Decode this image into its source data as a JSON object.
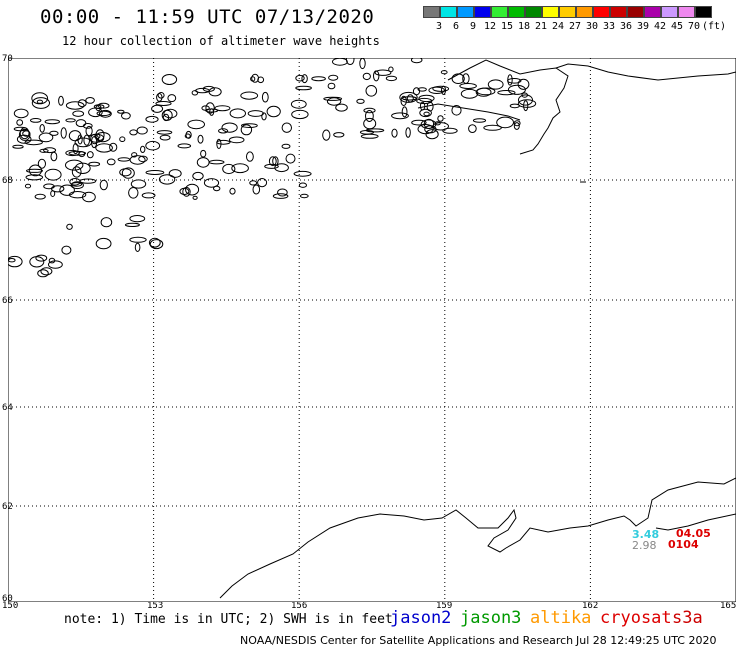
{
  "header": {
    "title": "00:00 - 11:59 UTC 07/13/2020",
    "subtitle": "12 hour collection of altimeter wave heights"
  },
  "legend": {
    "unit_label": "(ft)",
    "colors": [
      "#777777",
      "#00e5e5",
      "#0099ff",
      "#0000ee",
      "#33ee33",
      "#00bb00",
      "#008800",
      "#ffff00",
      "#ffcc00",
      "#ff9900",
      "#ff0000",
      "#cc0000",
      "#990000",
      "#aa00aa",
      "#cc99ff",
      "#ee88ee",
      "#000000"
    ],
    "labels": [
      "3",
      "6",
      "9",
      "12",
      "15",
      "18",
      "21",
      "24",
      "27",
      "30",
      "33",
      "36",
      "39",
      "42",
      "45",
      "70"
    ]
  },
  "axes": {
    "lat_labels": [
      "70",
      "68",
      "66",
      "64",
      "62",
      "60"
    ],
    "lon_labels": [
      "150",
      "153",
      "156",
      "159",
      "162",
      "165"
    ]
  },
  "observations": [
    {
      "text": "3.48",
      "color": "#33ccdd"
    },
    {
      "text": "2.98",
      "color": "#888888"
    },
    {
      "text": "04.05",
      "color": "#dd0000"
    },
    {
      "text": "0104",
      "color": "#dd0000"
    }
  ],
  "footer": {
    "note": "note: 1) Time is in UTC; 2) SWH is in feet",
    "satellites": [
      {
        "name": "jason2",
        "color": "#0000cc"
      },
      {
        "name": "jason3",
        "color": "#009900"
      },
      {
        "name": "altika",
        "color": "#ff9900"
      },
      {
        "name": "cryosat",
        "color": "#dd0000"
      },
      {
        "name": "s3a",
        "color": "#cc0000"
      }
    ],
    "credit": "NOAA/NESDIS Center for Satellite Applications and Research",
    "timestamp": "Jul 28 12:49:25 UTC 2020"
  }
}
